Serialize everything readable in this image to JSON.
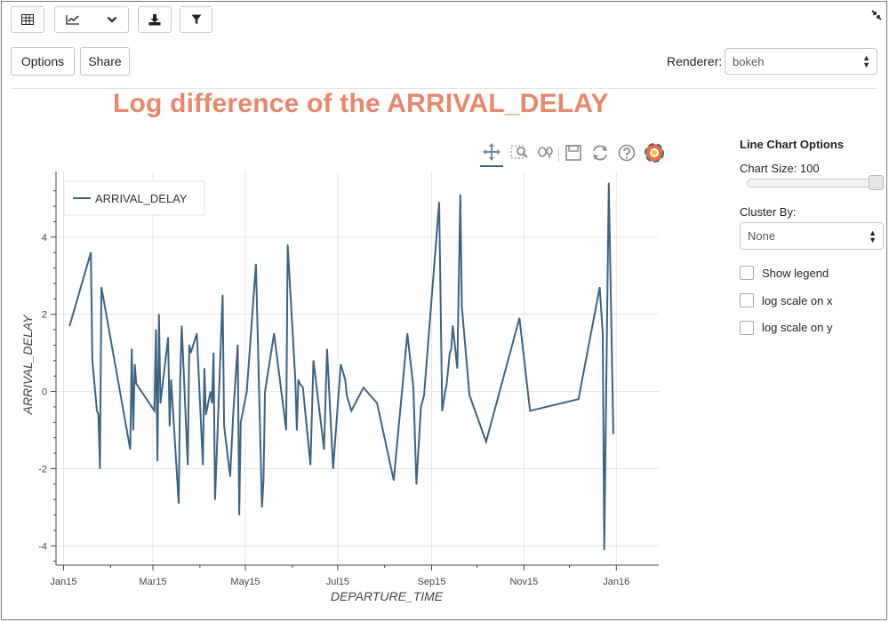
{
  "toolbar": {
    "table_icon": "table-grid-icon",
    "chart_icon": "line-chart-icon",
    "dropdown_icon": "chevron-down-icon",
    "download_icon": "download-icon",
    "filter_icon": "filter-icon",
    "collapse_icon": "collapse-arrows-icon"
  },
  "buttons": {
    "options": "Options",
    "share": "Share"
  },
  "renderer": {
    "label": "Renderer:",
    "value": "bokeh"
  },
  "plot_tools": [
    "pan-icon",
    "box-zoom-icon",
    "wheel-zoom-icon",
    "save-icon",
    "reset-icon",
    "help-icon",
    "bokeh-logo-icon"
  ],
  "options_panel": {
    "title": "Line Chart Options",
    "chart_size_label": "Chart Size:",
    "chart_size_value": "100",
    "chart_size_fraction": 1.0,
    "cluster_by_label": "Cluster By:",
    "cluster_by_value": "None",
    "checkboxes": [
      {
        "label": "Show legend",
        "checked": false
      },
      {
        "label": "log scale on x",
        "checked": false
      },
      {
        "label": "log scale on y",
        "checked": false
      }
    ]
  },
  "colors": {
    "title": "#e8876a",
    "line": "#3d6383",
    "grid": "#e6e6e6",
    "axis": "#444444"
  },
  "chart_data": {
    "type": "line",
    "title": "Log difference of the ARRIVAL_DELAY",
    "xlabel": "DEPARTURE_TIME",
    "ylabel": "ARRIVAL_DELAY",
    "x_ticks": [
      "Jan15",
      "Mar15",
      "May15",
      "Jul15",
      "Sep15",
      "Nov15",
      "Jan16"
    ],
    "y_ticks": [
      "-4",
      "-2",
      "0",
      "2",
      "4"
    ],
    "xlim": [
      "2014-12-27",
      "2016-01-29"
    ],
    "ylim": [
      -4.5,
      5.7
    ],
    "grid": true,
    "legend": "top-left",
    "series": [
      {
        "name": "ARRIVAL_DELAY",
        "x": [
          "2015-01-05",
          "2015-01-19",
          "2015-01-20",
          "2015-01-23",
          "2015-01-24",
          "2015-01-25",
          "2015-01-26",
          "2015-02-14",
          "2015-02-15",
          "2015-02-16",
          "2015-02-17",
          "2015-02-18",
          "2015-03-02",
          "2015-03-03",
          "2015-03-04",
          "2015-03-05",
          "2015-03-06",
          "2015-03-11",
          "2015-03-12",
          "2015-03-13",
          "2015-03-18",
          "2015-03-19",
          "2015-03-20",
          "2015-03-24",
          "2015-03-25",
          "2015-03-26",
          "2015-03-30",
          "2015-04-03",
          "2015-04-04",
          "2015-04-05",
          "2015-04-08",
          "2015-04-09",
          "2015-04-10",
          "2015-04-11",
          "2015-04-16",
          "2015-04-17",
          "2015-04-21",
          "2015-04-23",
          "2015-04-26",
          "2015-04-27",
          "2015-04-28",
          "2015-05-02",
          "2015-05-08",
          "2015-05-12",
          "2015-05-13",
          "2015-05-14",
          "2015-05-20",
          "2015-05-28",
          "2015-05-29",
          "2015-06-03",
          "2015-06-04",
          "2015-06-05",
          "2015-06-06",
          "2015-06-08",
          "2015-06-13",
          "2015-06-15",
          "2015-06-22",
          "2015-06-24",
          "2015-06-28",
          "2015-07-03",
          "2015-07-06",
          "2015-07-07",
          "2015-07-10",
          "2015-07-18",
          "2015-07-27",
          "2015-08-07",
          "2015-08-16",
          "2015-08-20",
          "2015-08-22",
          "2015-08-25",
          "2015-08-27",
          "2015-09-06",
          "2015-09-08",
          "2015-09-10",
          "2015-09-11",
          "2015-09-13",
          "2015-09-14",
          "2015-09-15",
          "2015-09-18",
          "2015-09-20",
          "2015-09-21",
          "2015-09-26",
          "2015-10-07",
          "2015-10-29",
          "2015-11-05",
          "2015-12-07",
          "2015-12-21",
          "2015-12-23",
          "2015-12-24",
          "2015-12-27",
          "2015-12-30"
        ],
        "y": [
          1.7,
          3.6,
          0.8,
          -0.5,
          -0.6,
          -2.0,
          2.7,
          -1.5,
          1.1,
          -1.0,
          0.7,
          0.2,
          -0.5,
          1.6,
          -1.8,
          2.0,
          -0.3,
          1.4,
          -0.9,
          0.3,
          -2.9,
          0.3,
          1.7,
          -1.9,
          1.2,
          1.0,
          1.5,
          -1.9,
          0.6,
          -0.6,
          0.0,
          -0.3,
          1.0,
          -2.8,
          2.5,
          -0.9,
          -2.2,
          -0.6,
          1.2,
          -3.2,
          -0.8,
          0.0,
          3.3,
          -3.0,
          -2.3,
          0.0,
          1.5,
          -1.0,
          3.8,
          0.3,
          -1.0,
          0.3,
          0.2,
          0.1,
          -1.9,
          0.8,
          -1.5,
          1.1,
          -2.0,
          0.7,
          0.3,
          -0.1,
          -0.5,
          0.1,
          -0.3,
          -2.3,
          1.5,
          0.1,
          -2.4,
          -0.4,
          -0.1,
          4.9,
          -0.5,
          0.0,
          0.2,
          1.0,
          1.1,
          1.7,
          0.6,
          5.1,
          2.2,
          -0.1,
          -1.3,
          1.9,
          -0.5,
          -0.2,
          2.7,
          1.5,
          -4.1,
          5.4,
          -1.1
        ]
      }
    ]
  }
}
